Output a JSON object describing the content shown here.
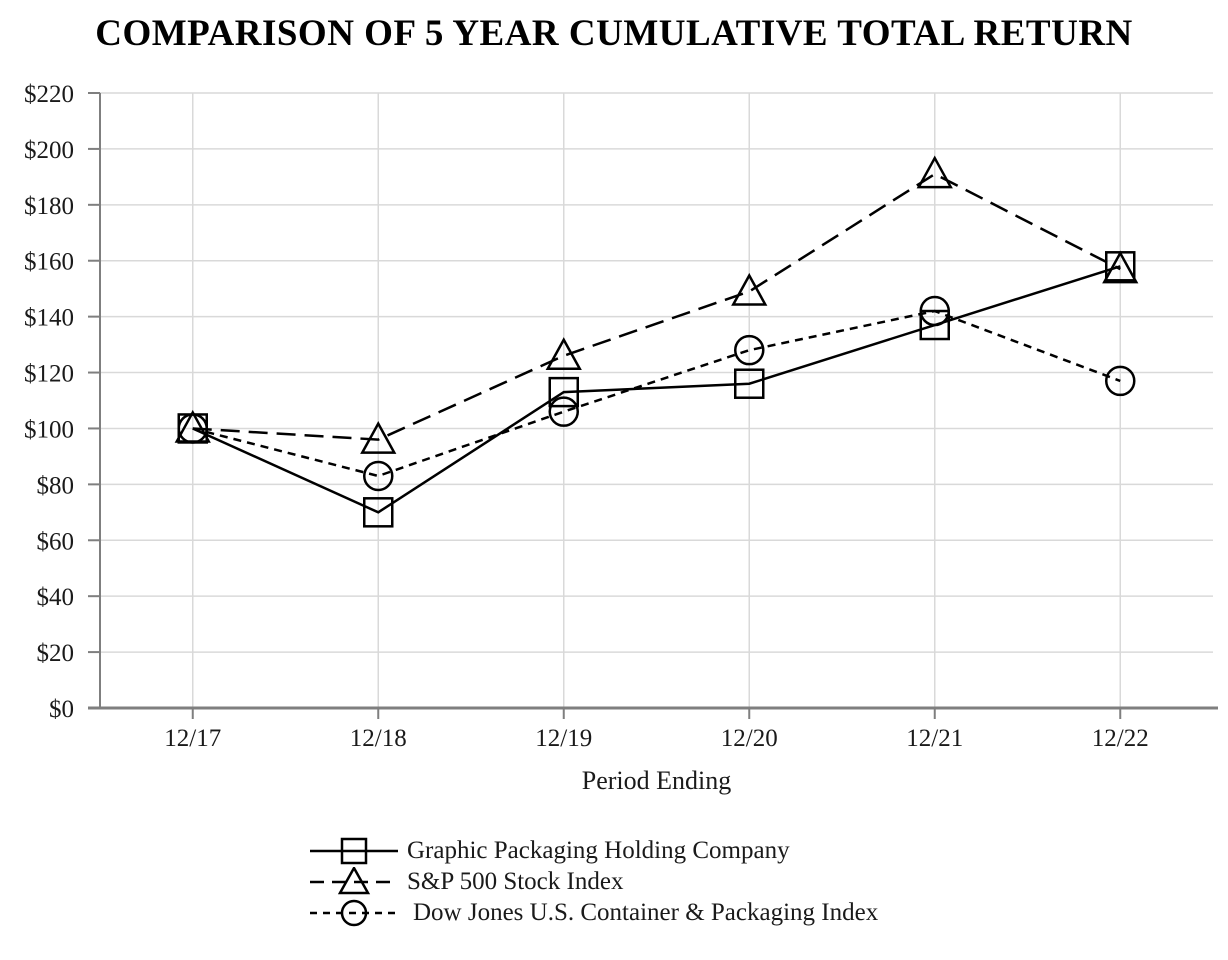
{
  "chart_data": {
    "type": "line",
    "title": "COMPARISON OF 5 YEAR CUMULATIVE TOTAL RETURN",
    "xlabel": "Period Ending",
    "ylabel": "",
    "categories": [
      "12/17",
      "12/18",
      "12/19",
      "12/20",
      "12/21",
      "12/22"
    ],
    "ylim": [
      0,
      220
    ],
    "y_ticks": [
      0,
      20,
      40,
      60,
      80,
      100,
      120,
      140,
      160,
      180,
      200,
      220
    ],
    "y_tick_labels": [
      "$0",
      "$20",
      "$40",
      "$60",
      "$80",
      "$100",
      "$120",
      "$140",
      "$160",
      "$180",
      "$200",
      "$220"
    ],
    "grid": true,
    "legend_position": "bottom-left",
    "series": [
      {
        "name": "Graphic Packaging Holding Company",
        "marker": "square",
        "line_style": "solid",
        "values": [
          100,
          70,
          113,
          116,
          137,
          158
        ]
      },
      {
        "name": "S&P 500 Stock Index",
        "marker": "triangle",
        "line_style": "long-dash",
        "values": [
          100,
          96,
          126,
          149,
          191,
          157
        ]
      },
      {
        "name": "Dow Jones U.S. Container & Packaging Index",
        "marker": "circle",
        "line_style": "short-dash",
        "values": [
          100,
          83,
          106,
          128,
          142,
          117
        ]
      }
    ],
    "colors": {
      "series": "#000000",
      "axis": "#7f7f7f",
      "grid": "#d9d9d9",
      "text": "#1a1a1a"
    }
  }
}
